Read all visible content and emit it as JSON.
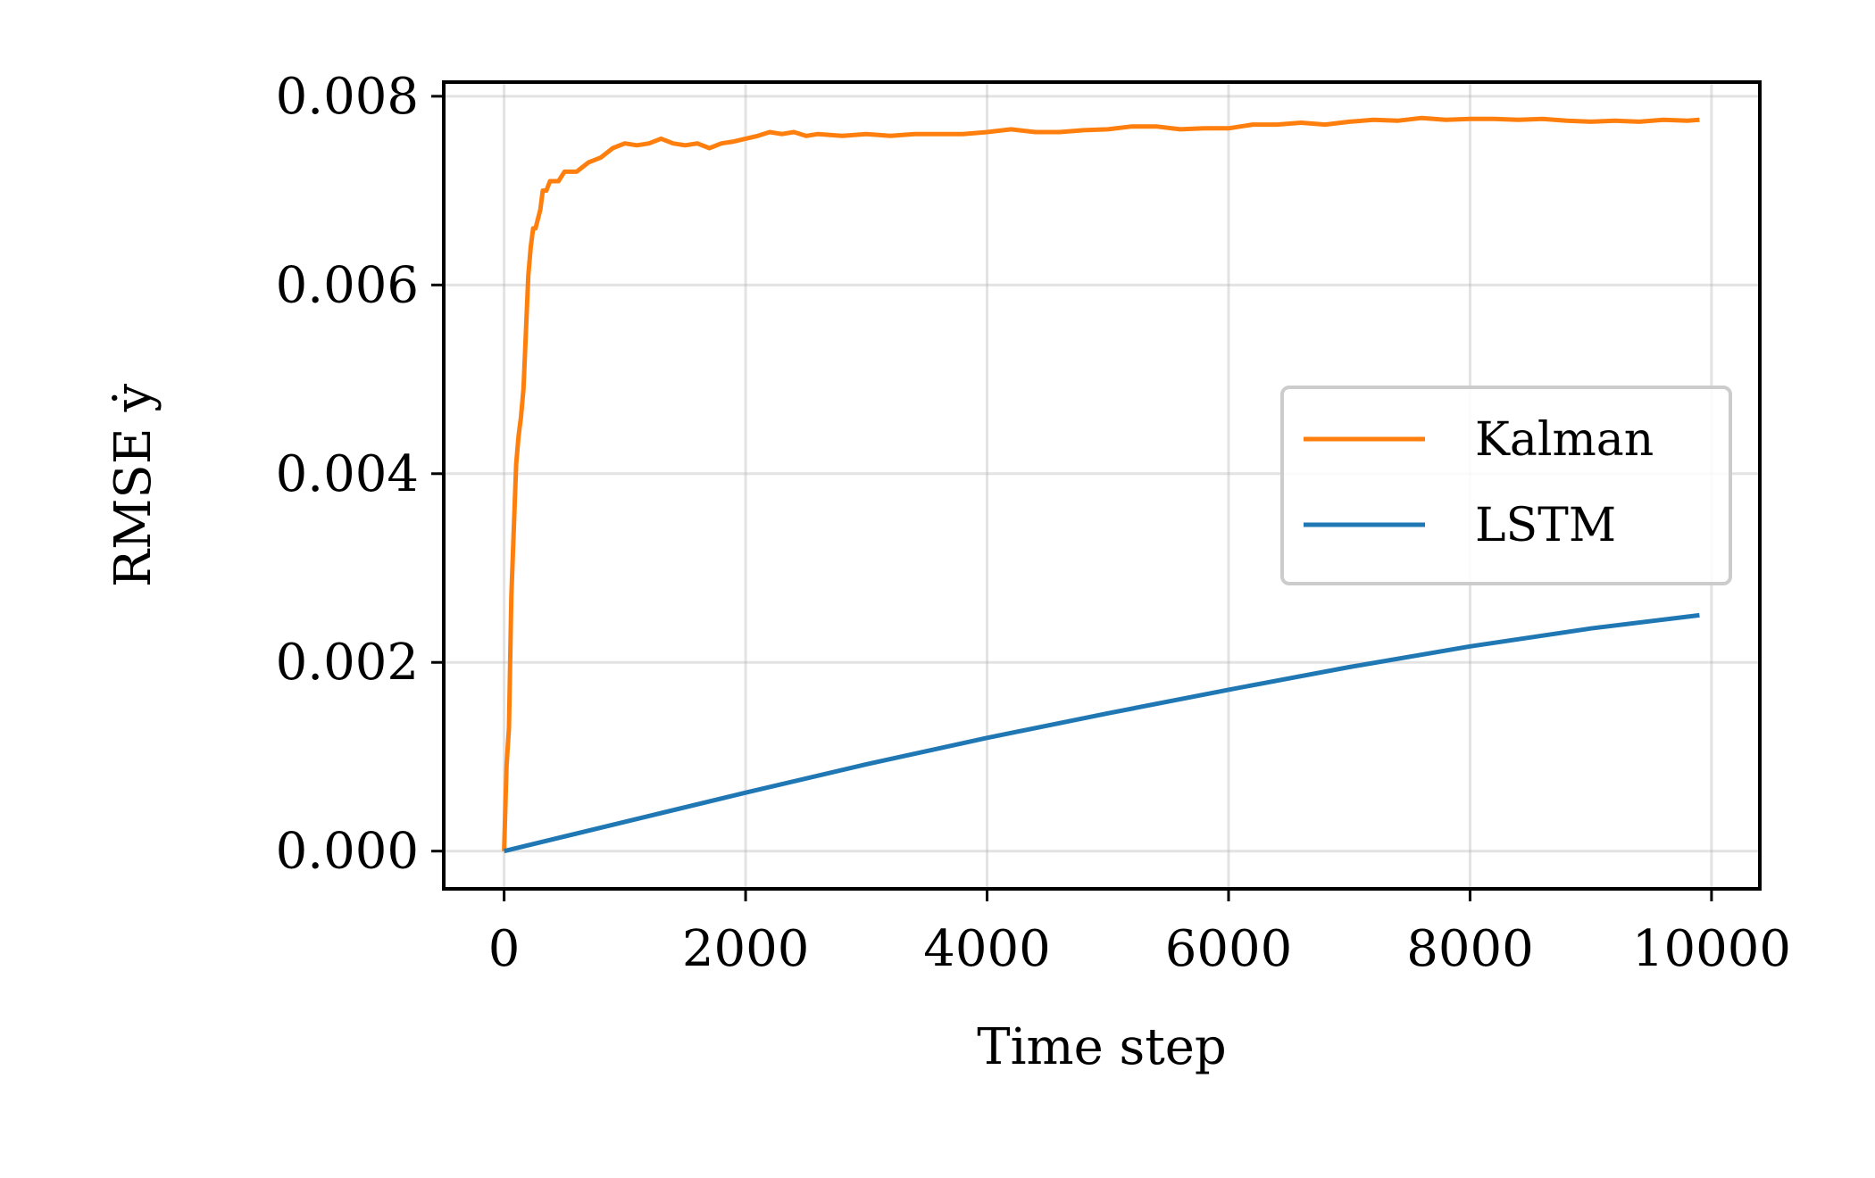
{
  "chart_data": {
    "type": "line",
    "title": "",
    "xlabel": "Time step",
    "ylabel": "RMSE ẏ",
    "xlim": [
      -500,
      10400
    ],
    "ylim": [
      -0.0004,
      0.00815
    ],
    "xticks": [
      0,
      2000,
      4000,
      6000,
      8000,
      10000
    ],
    "xtick_labels": [
      "0",
      "2000",
      "4000",
      "6000",
      "8000",
      "10000"
    ],
    "yticks": [
      0.0,
      0.002,
      0.004,
      0.006,
      0.008
    ],
    "ytick_labels": [
      "0.000",
      "0.002",
      "0.004",
      "0.006",
      "0.008"
    ],
    "grid": true,
    "legend_position": "center-right",
    "series": [
      {
        "name": "Kalman",
        "color": "#ff7f0e",
        "x": [
          0,
          20,
          40,
          60,
          80,
          100,
          120,
          140,
          160,
          180,
          200,
          220,
          240,
          260,
          280,
          300,
          320,
          350,
          380,
          400,
          450,
          500,
          550,
          600,
          700,
          800,
          900,
          1000,
          1100,
          1200,
          1300,
          1400,
          1500,
          1600,
          1700,
          1800,
          1900,
          2000,
          2100,
          2200,
          2300,
          2400,
          2500,
          2600,
          2800,
          3000,
          3200,
          3400,
          3600,
          3800,
          4000,
          4200,
          4400,
          4600,
          4800,
          5000,
          5200,
          5400,
          5600,
          5800,
          6000,
          6200,
          6400,
          6600,
          6800,
          7000,
          7200,
          7400,
          7600,
          7800,
          8000,
          8200,
          8400,
          8600,
          8800,
          9000,
          9200,
          9400,
          9600,
          9800,
          9900
        ],
        "y": [
          0.0,
          0.0009,
          0.0013,
          0.0027,
          0.0034,
          0.0041,
          0.0044,
          0.0046,
          0.0049,
          0.0055,
          0.0061,
          0.0064,
          0.0066,
          0.0066,
          0.0067,
          0.0068,
          0.007,
          0.007,
          0.0071,
          0.0071,
          0.0071,
          0.0072,
          0.0072,
          0.0072,
          0.0073,
          0.00735,
          0.00745,
          0.0075,
          0.00748,
          0.0075,
          0.00755,
          0.0075,
          0.00748,
          0.0075,
          0.00745,
          0.0075,
          0.00752,
          0.00755,
          0.00758,
          0.00762,
          0.0076,
          0.00762,
          0.00758,
          0.0076,
          0.00758,
          0.0076,
          0.00758,
          0.0076,
          0.0076,
          0.0076,
          0.00762,
          0.00765,
          0.00762,
          0.00762,
          0.00764,
          0.00765,
          0.00768,
          0.00768,
          0.00765,
          0.00766,
          0.00766,
          0.0077,
          0.0077,
          0.00772,
          0.0077,
          0.00773,
          0.00775,
          0.00774,
          0.00777,
          0.00775,
          0.00776,
          0.00776,
          0.00775,
          0.00776,
          0.00774,
          0.00773,
          0.00774,
          0.00773,
          0.00775,
          0.00774,
          0.00775
        ]
      },
      {
        "name": "LSTM",
        "color": "#1f77b4",
        "x": [
          0,
          1000,
          2000,
          3000,
          4000,
          5000,
          6000,
          7000,
          8000,
          9000,
          9900
        ],
        "y": [
          0.0,
          0.00031,
          0.00062,
          0.00092,
          0.0012,
          0.00146,
          0.00171,
          0.00195,
          0.00217,
          0.00236,
          0.0025
        ]
      }
    ]
  }
}
